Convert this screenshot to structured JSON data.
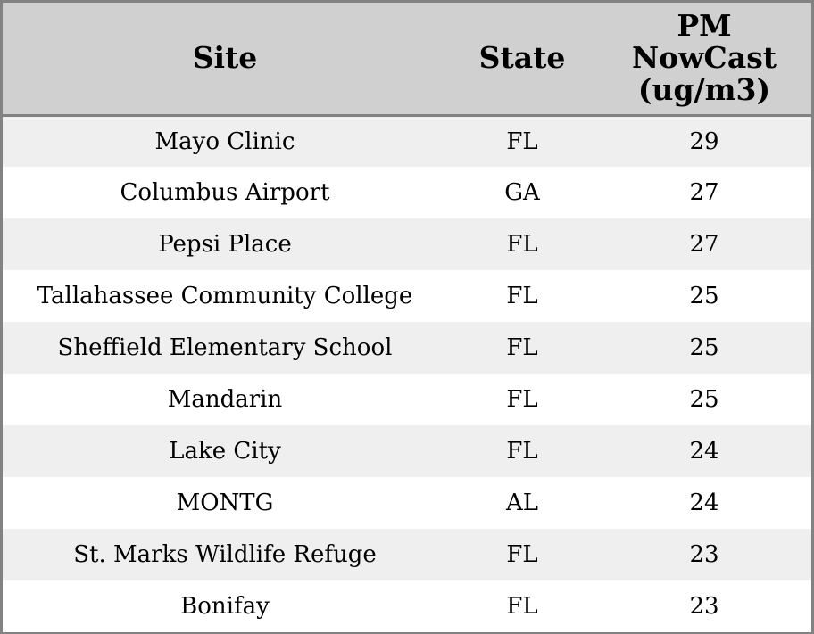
{
  "chart_data": {
    "type": "table",
    "columns": [
      "Site",
      "State",
      "PM NowCast (ug/m3)"
    ],
    "header_lines": {
      "site": "Site",
      "state": "State",
      "pm_line1": "PM",
      "pm_line2": "NowCast",
      "pm_line3": "(ug/m3)"
    },
    "rows": [
      {
        "site": "Mayo Clinic",
        "state": "FL",
        "pm": "29"
      },
      {
        "site": "Columbus Airport",
        "state": "GA",
        "pm": "27"
      },
      {
        "site": "Pepsi Place",
        "state": "FL",
        "pm": "27"
      },
      {
        "site": "Tallahassee Community College",
        "state": "FL",
        "pm": "25"
      },
      {
        "site": "Sheffield Elementary School",
        "state": "FL",
        "pm": "25"
      },
      {
        "site": "Mandarin",
        "state": "FL",
        "pm": "25"
      },
      {
        "site": "Lake City",
        "state": "FL",
        "pm": "24"
      },
      {
        "site": "MONTG",
        "state": "AL",
        "pm": "24"
      },
      {
        "site": "St. Marks Wildlife Refuge",
        "state": "FL",
        "pm": "23"
      },
      {
        "site": "Bonifay",
        "state": "FL",
        "pm": "23"
      }
    ]
  },
  "colors": {
    "header_bg": "#d0d0d0",
    "row_odd_bg": "#efefef",
    "row_even_bg": "#ffffff",
    "border": "#828282",
    "text": "#000000"
  }
}
